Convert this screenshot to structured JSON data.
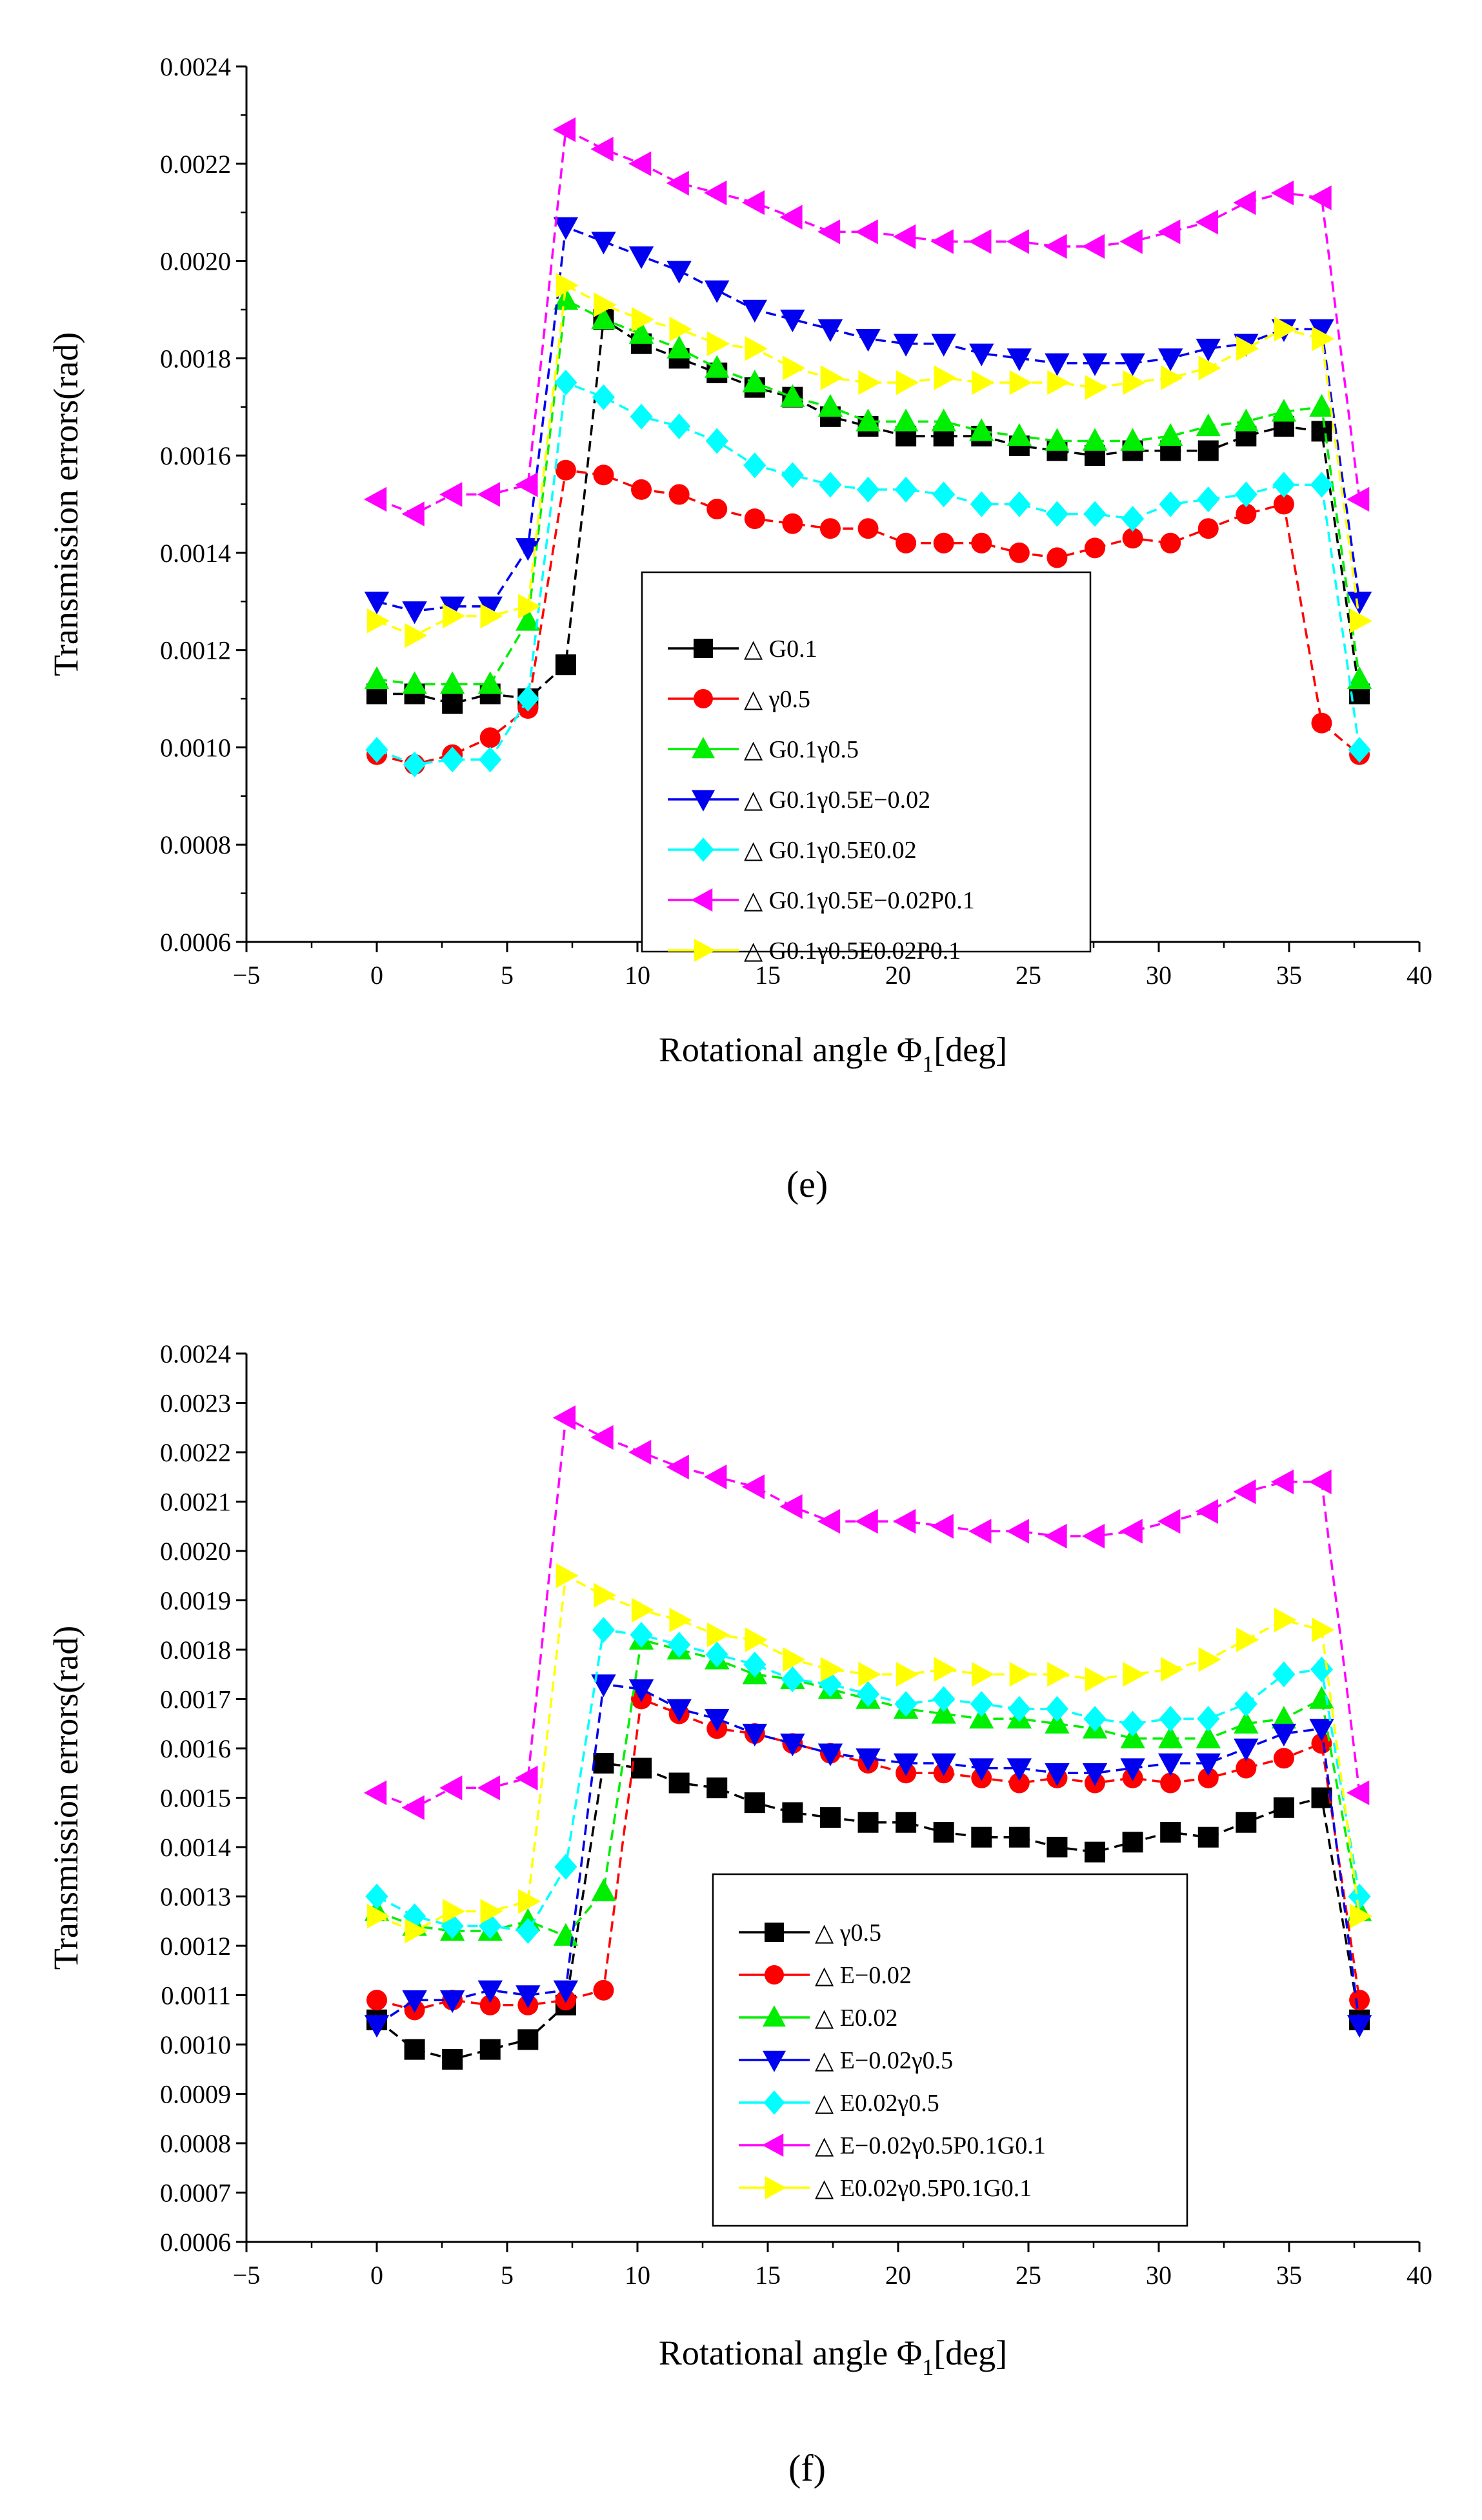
{
  "chart_data": [
    {
      "type": "line",
      "panel_label": "(e)",
      "xlabel": "Rotational angle Φ",
      "xlabel_sub": "1",
      "xlabel_tail": "[deg]",
      "ylabel": "Transmission errors(rad)",
      "xlim": [
        -5,
        40
      ],
      "ylim": [
        0.0006,
        0.0024
      ],
      "xticks": [
        "−5",
        "0",
        "5",
        "10",
        "15",
        "20",
        "25",
        "30",
        "35",
        "40"
      ],
      "yticks": [
        "0.0006",
        "0.0008",
        "0.0010",
        "0.0012",
        "0.0014",
        "0.0016",
        "0.0018",
        "0.0020",
        "0.0022",
        "0.0024"
      ],
      "legend_position": "center",
      "x": [
        0,
        1.45,
        2.9,
        4.35,
        5.8,
        7.25,
        8.7,
        10.15,
        11.6,
        13.05,
        14.5,
        15.95,
        17.4,
        18.85,
        20.3,
        21.75,
        23.2,
        24.65,
        26.1,
        27.55,
        29,
        30.45,
        31.9,
        33.35,
        34.8,
        36.25,
        37.7
      ],
      "series": [
        {
          "name": "△ G0.1",
          "color": "#000000",
          "marker": "square",
          "values": [
            0.00111,
            0.00111,
            0.00109,
            0.00111,
            0.0011,
            0.00117,
            0.00188,
            0.00183,
            0.0018,
            0.00177,
            0.00174,
            0.00172,
            0.00168,
            0.00166,
            0.00164,
            0.00164,
            0.00164,
            0.00162,
            0.00161,
            0.0016,
            0.00161,
            0.00161,
            0.00161,
            0.00164,
            0.00166,
            0.00165,
            0.00111
          ]
        },
        {
          "name": "△ γ0.5",
          "color": "#ff0000",
          "marker": "circle",
          "values": [
            0.000985,
            0.000965,
            0.000985,
            0.00102,
            0.00108,
            0.00157,
            0.00156,
            0.00153,
            0.00152,
            0.00149,
            0.00147,
            0.00146,
            0.00145,
            0.00145,
            0.00142,
            0.00142,
            0.00142,
            0.0014,
            0.00139,
            0.00141,
            0.00143,
            0.00142,
            0.00145,
            0.00148,
            0.0015,
            0.00105,
            0.000985
          ]
        },
        {
          "name": "△ G0.1γ0.5",
          "color": "#00ee00",
          "marker": "triangle-up",
          "values": [
            0.00114,
            0.00113,
            0.00113,
            0.00113,
            0.00126,
            0.00192,
            0.00188,
            0.00185,
            0.00182,
            0.00178,
            0.00175,
            0.00172,
            0.0017,
            0.00167,
            0.00167,
            0.00167,
            0.00165,
            0.00164,
            0.00163,
            0.00163,
            0.00163,
            0.00164,
            0.00166,
            0.00167,
            0.00169,
            0.0017,
            0.00114
          ]
        },
        {
          "name": "△ G0.1γ0.5E−0.02",
          "color": "#0000ee",
          "marker": "triangle-down",
          "values": [
            0.0013,
            0.00128,
            0.00129,
            0.00129,
            0.00141,
            0.00207,
            0.00204,
            0.00201,
            0.00198,
            0.00194,
            0.0019,
            0.00188,
            0.00186,
            0.00184,
            0.00183,
            0.00183,
            0.00181,
            0.0018,
            0.00179,
            0.00179,
            0.00179,
            0.0018,
            0.00182,
            0.00183,
            0.00186,
            0.00186,
            0.0013
          ]
        },
        {
          "name": "△ G0.1γ0.5E0.02",
          "color": "#00ffff",
          "marker": "diamond",
          "values": [
            0.000995,
            0.000965,
            0.000975,
            0.000975,
            0.0011,
            0.00175,
            0.00172,
            0.00168,
            0.00166,
            0.00163,
            0.00158,
            0.00156,
            0.00154,
            0.00153,
            0.00153,
            0.00152,
            0.0015,
            0.0015,
            0.00148,
            0.00148,
            0.00147,
            0.0015,
            0.00151,
            0.00152,
            0.00154,
            0.00154,
            0.000995
          ]
        },
        {
          "name": "△ G0.1γ0.5E−0.02P0.1",
          "color": "#ff00ff",
          "marker": "triangle-left",
          "values": [
            0.00151,
            0.00148,
            0.00152,
            0.00152,
            0.00154,
            0.00227,
            0.00223,
            0.0022,
            0.00216,
            0.00214,
            0.00212,
            0.00209,
            0.00206,
            0.00206,
            0.00205,
            0.00204,
            0.00204,
            0.00204,
            0.00203,
            0.00203,
            0.00204,
            0.00206,
            0.00208,
            0.00212,
            0.00214,
            0.00213,
            0.00151
          ]
        },
        {
          "name": "△ G0.1γ0.5E0.02P0.1",
          "color": "#ffff00",
          "marker": "triangle-right",
          "values": [
            0.00126,
            0.00123,
            0.00127,
            0.00127,
            0.00129,
            0.00195,
            0.00191,
            0.00188,
            0.00186,
            0.00183,
            0.00182,
            0.00178,
            0.00176,
            0.00175,
            0.00175,
            0.00176,
            0.00175,
            0.00175,
            0.00175,
            0.00174,
            0.00175,
            0.00176,
            0.00178,
            0.00182,
            0.00186,
            0.00184,
            0.00126
          ]
        }
      ]
    },
    {
      "type": "line",
      "panel_label": "(f)",
      "xlabel": "Rotational angle Φ",
      "xlabel_sub": "1",
      "xlabel_tail": "[deg]",
      "ylabel": "Transmission errors(rad)",
      "xlim": [
        -5,
        40
      ],
      "ylim": [
        0.0006,
        0.0024
      ],
      "xticks": [
        "−5",
        "0",
        "5",
        "10",
        "15",
        "20",
        "25",
        "30",
        "35",
        "40"
      ],
      "yticks": [
        "0.0006",
        "0.0007",
        "0.0008",
        "0.0009",
        "0.0010",
        "0.0011",
        "0.0012",
        "0.0013",
        "0.0014",
        "0.0015",
        "0.0016",
        "0.0017",
        "0.0018",
        "0.0019",
        "0.0020",
        "0.0021",
        "0.0022",
        "0.0023",
        "0.0024"
      ],
      "legend_position": "lower-center",
      "x": [
        0,
        1.45,
        2.9,
        4.35,
        5.8,
        7.25,
        8.7,
        10.15,
        11.6,
        13.05,
        14.5,
        15.95,
        17.4,
        18.85,
        20.3,
        21.75,
        23.2,
        24.65,
        26.1,
        27.55,
        29,
        30.45,
        31.9,
        33.35,
        34.8,
        36.25,
        37.7
      ],
      "series": [
        {
          "name": "△ γ0.5",
          "color": "#000000",
          "marker": "square",
          "values": [
            0.00105,
            0.00099,
            0.00097,
            0.00099,
            0.00101,
            0.00108,
            0.00157,
            0.00156,
            0.00153,
            0.00152,
            0.00149,
            0.00147,
            0.00146,
            0.00145,
            0.00145,
            0.00143,
            0.00142,
            0.00142,
            0.0014,
            0.00139,
            0.00141,
            0.00143,
            0.00142,
            0.00145,
            0.00148,
            0.0015,
            0.00105
          ]
        },
        {
          "name": "△ E−0.02",
          "color": "#ff0000",
          "marker": "circle",
          "values": [
            0.00109,
            0.00107,
            0.00109,
            0.00108,
            0.00108,
            0.00109,
            0.00111,
            0.0017,
            0.00167,
            0.00164,
            0.00163,
            0.00161,
            0.00159,
            0.00157,
            0.00155,
            0.00155,
            0.00154,
            0.00153,
            0.00154,
            0.00153,
            0.00154,
            0.00153,
            0.00154,
            0.00156,
            0.00158,
            0.00161,
            0.00109
          ]
        },
        {
          "name": "△ E0.02",
          "color": "#00ee00",
          "marker": "triangle-up",
          "values": [
            0.00127,
            0.00124,
            0.00123,
            0.00123,
            0.00125,
            0.00122,
            0.00131,
            0.00182,
            0.0018,
            0.00178,
            0.00175,
            0.00174,
            0.00172,
            0.0017,
            0.00168,
            0.00167,
            0.00166,
            0.00166,
            0.00165,
            0.00164,
            0.00162,
            0.00162,
            0.00162,
            0.00165,
            0.00166,
            0.0017,
            0.00127
          ]
        },
        {
          "name": "△ E−0.02γ0.5",
          "color": "#0000ee",
          "marker": "triangle-down",
          "values": [
            0.00104,
            0.00109,
            0.00109,
            0.00111,
            0.0011,
            0.00111,
            0.00173,
            0.00172,
            0.00168,
            0.00166,
            0.00163,
            0.00161,
            0.00159,
            0.00158,
            0.00157,
            0.00157,
            0.00156,
            0.00156,
            0.00155,
            0.00155,
            0.00156,
            0.00157,
            0.00157,
            0.0016,
            0.00163,
            0.00164,
            0.00104
          ]
        },
        {
          "name": "△ E0.02γ0.5",
          "color": "#00ffff",
          "marker": "diamond",
          "values": [
            0.0013,
            0.00126,
            0.00124,
            0.00124,
            0.00123,
            0.00136,
            0.00184,
            0.00183,
            0.00181,
            0.00179,
            0.00177,
            0.00174,
            0.00173,
            0.00171,
            0.00169,
            0.0017,
            0.00169,
            0.00168,
            0.00168,
            0.00166,
            0.00165,
            0.00166,
            0.00166,
            0.00169,
            0.00175,
            0.00176,
            0.0013
          ]
        },
        {
          "name": "△ E−0.02γ0.5P0.1G0.1",
          "color": "#ff00ff",
          "marker": "triangle-left",
          "values": [
            0.00151,
            0.00148,
            0.00152,
            0.00152,
            0.00154,
            0.00227,
            0.00223,
            0.0022,
            0.00217,
            0.00215,
            0.00213,
            0.00209,
            0.00206,
            0.00206,
            0.00206,
            0.00205,
            0.00204,
            0.00204,
            0.00203,
            0.00203,
            0.00204,
            0.00206,
            0.00208,
            0.00212,
            0.00214,
            0.00214,
            0.00151
          ]
        },
        {
          "name": "△ E0.02γ0.5P0.1G0.1",
          "color": "#ffff00",
          "marker": "triangle-right",
          "values": [
            0.00126,
            0.00123,
            0.00127,
            0.00127,
            0.00129,
            0.00195,
            0.00191,
            0.00188,
            0.00186,
            0.00183,
            0.00182,
            0.00178,
            0.00176,
            0.00175,
            0.00175,
            0.00176,
            0.00175,
            0.00175,
            0.00175,
            0.00174,
            0.00175,
            0.00176,
            0.00178,
            0.00182,
            0.00186,
            0.00184,
            0.00126
          ]
        }
      ]
    }
  ]
}
